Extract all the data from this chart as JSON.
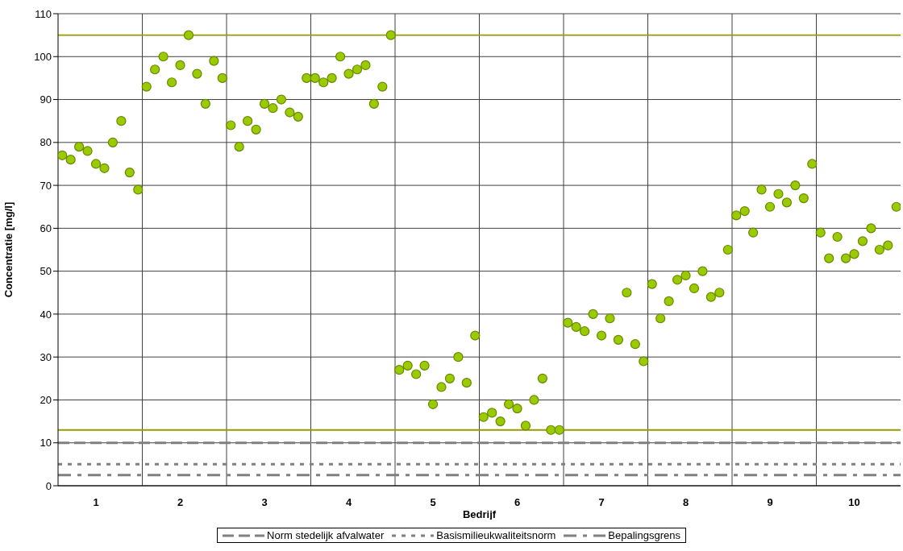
{
  "chart_data": {
    "type": "scatter",
    "xlabel": "Bedrijf",
    "ylabel": "Concentratie [mg/l]",
    "categories": [
      null,
      null,
      null,
      null,
      "1",
      null,
      null,
      null,
      null,
      null,
      null,
      null,
      null,
      null,
      "2",
      null,
      null,
      null,
      null,
      null,
      null,
      null,
      null,
      null,
      "3",
      null,
      null,
      null,
      null,
      null,
      null,
      null,
      null,
      null,
      "4",
      null,
      null,
      null,
      null,
      null,
      null,
      null,
      null,
      null,
      "5",
      null,
      null,
      null,
      null,
      null,
      null,
      null,
      null,
      null,
      "6",
      null,
      null,
      null,
      null,
      null,
      null,
      null,
      null,
      null,
      "7",
      null,
      null,
      null,
      null,
      null,
      null,
      null,
      null,
      null,
      "8",
      null,
      null,
      null,
      null,
      null,
      null,
      null,
      null,
      null,
      "9",
      null,
      null,
      null,
      null,
      null,
      null,
      null,
      null,
      null,
      "10",
      null,
      null,
      null,
      null,
      null
    ],
    "series": [
      {
        "color": "#99cc00",
        "values": [
          77,
          76,
          79,
          78,
          75,
          74,
          80,
          85,
          73,
          69,
          93,
          97,
          100,
          94,
          98,
          105,
          96,
          89,
          99,
          95,
          84,
          79,
          85,
          83,
          89,
          88,
          90,
          87,
          86,
          95,
          95,
          94,
          95,
          100,
          96,
          97,
          98,
          89,
          93,
          105,
          27,
          28,
          26,
          28,
          19,
          23,
          25,
          30,
          24,
          35,
          16,
          17,
          15,
          19,
          18,
          14,
          20,
          25,
          13,
          13,
          38,
          37,
          36,
          40,
          35,
          39,
          34,
          45,
          33,
          29,
          47,
          39,
          43,
          48,
          49,
          46,
          50,
          44,
          45,
          55,
          63,
          64,
          59,
          69,
          65,
          68,
          66,
          70,
          67,
          75,
          59,
          53,
          58,
          53,
          54,
          57,
          60,
          55,
          56,
          65
        ]
      }
    ],
    "ylim": [
      0,
      110
    ],
    "yticks": [
      0,
      10,
      20,
      30,
      40,
      50,
      60,
      70,
      80,
      90,
      100,
      110
    ],
    "grid": true,
    "marker": "circle",
    "legend": "bottom",
    "ref_lines": [
      {
        "axis": "y",
        "value": 105,
        "color": "#999900",
        "line_style": "solid"
      },
      {
        "axis": "y",
        "value": 13,
        "color": "#999900",
        "line_style": "solid"
      },
      {
        "axis": "y",
        "value": 10,
        "color": "#808080",
        "line_style": "dashed",
        "label": "Norm stedelijk afvalwater"
      },
      {
        "axis": "y",
        "value": 5,
        "color": "#808080",
        "line_style": "dotted",
        "label": "Basismilieukwaliteitsnorm"
      },
      {
        "axis": "y",
        "value": 2.5,
        "color": "#808080",
        "line_style": "dashdot",
        "label": "Bepalingsgrens"
      }
    ]
  }
}
